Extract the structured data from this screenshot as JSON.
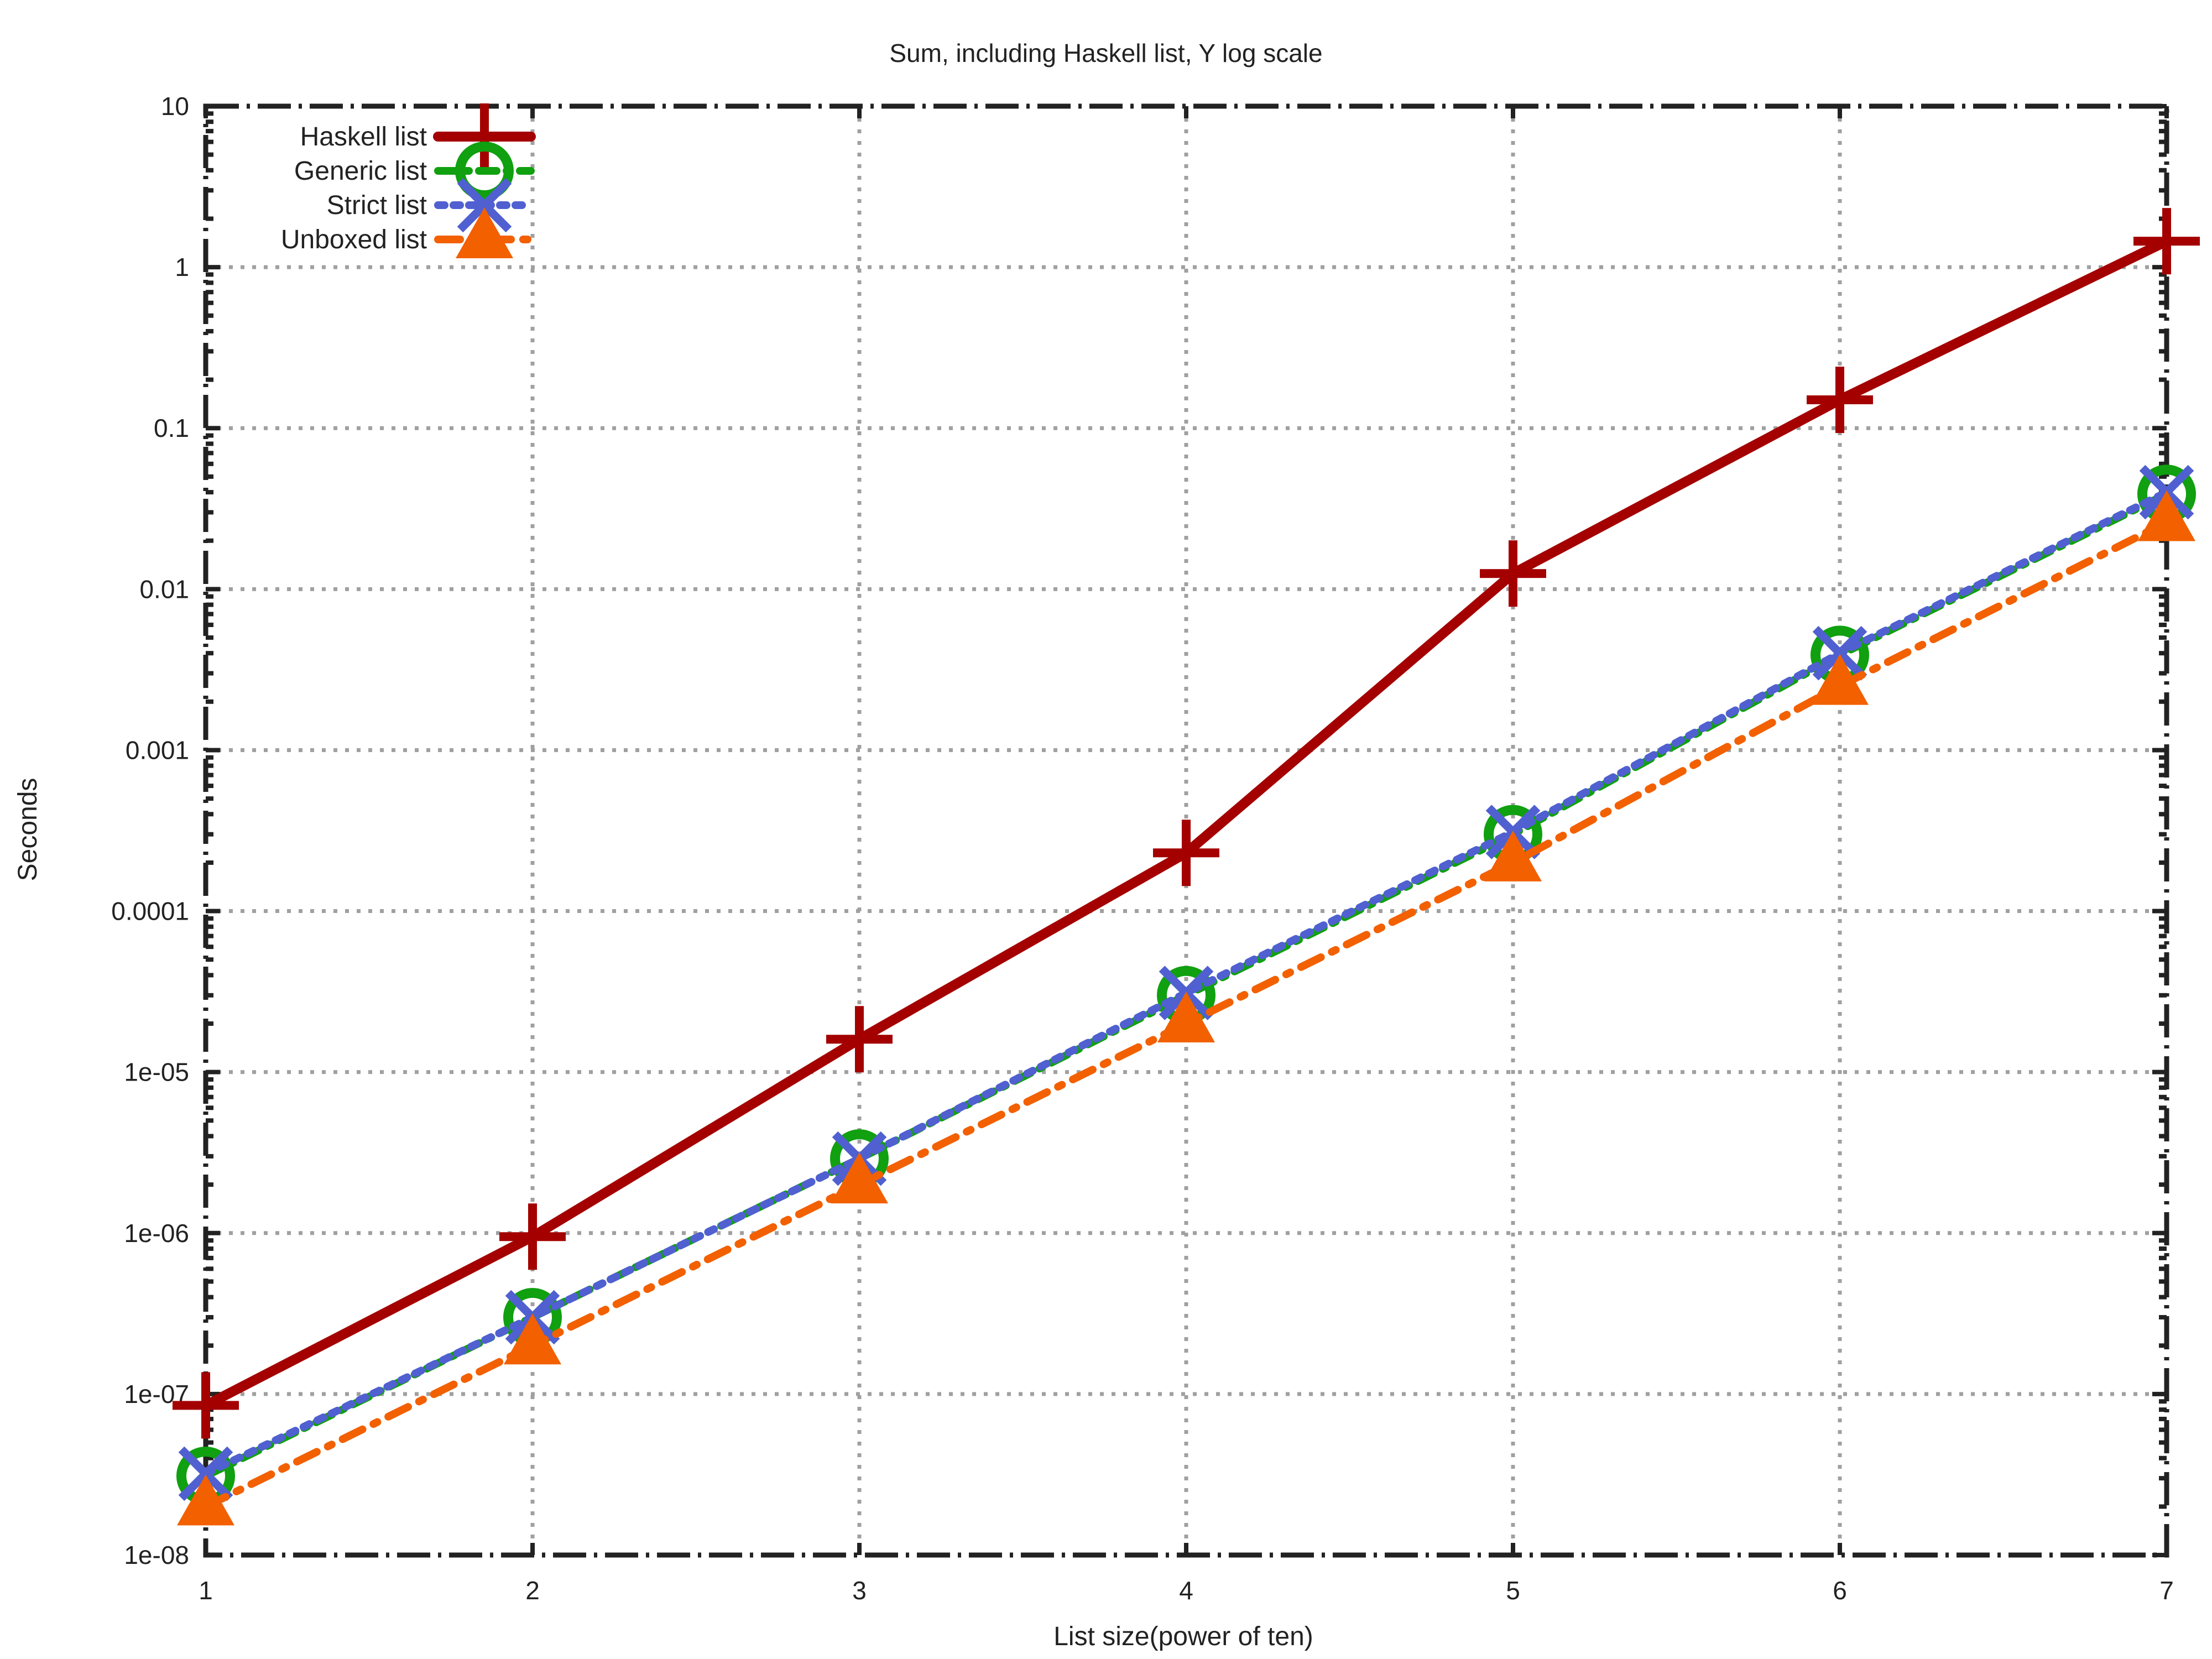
{
  "chart_data": {
    "type": "line",
    "title": "Sum, including Haskell list, Y log scale",
    "xlabel": "List size(power of ten)",
    "ylabel": "Seconds",
    "x": [
      1,
      2,
      3,
      4,
      5,
      6,
      7
    ],
    "xlim": [
      1,
      7
    ],
    "ylim": [
      1e-08,
      10
    ],
    "yscale": "log",
    "x_tick_labels": [
      "1",
      "2",
      "3",
      "4",
      "5",
      "6",
      "7"
    ],
    "y_ticks": [
      1e-08,
      1e-07,
      1e-06,
      1e-05,
      0.0001,
      0.001,
      0.01,
      0.1,
      1,
      10
    ],
    "y_tick_labels": [
      "1e-08",
      "1e-07",
      "1e-06",
      "1e-05",
      "0.0001",
      "0.001",
      "0.01",
      "0.1",
      "1",
      "10"
    ],
    "grid": true,
    "legend_position": "top-left",
    "series": [
      {
        "name": "Haskell list",
        "values": [
          8.5e-08,
          9.5e-07,
          1.6e-05,
          0.00023,
          0.0125,
          0.15,
          1.45
        ],
        "color": "#a40000",
        "marker": "plus",
        "dash": "solid"
      },
      {
        "name": "Generic list",
        "values": [
          3.1e-08,
          3e-07,
          2.9e-06,
          3e-05,
          0.0003,
          0.0039,
          0.039
        ],
        "color": "#10a010",
        "marker": "circle",
        "dash": "dashdot"
      },
      {
        "name": "Strict list",
        "values": [
          3.2e-08,
          3e-07,
          2.9e-06,
          3.1e-05,
          0.00031,
          0.004,
          0.04
        ],
        "color": "#5060d0",
        "marker": "x",
        "dash": "dotted"
      },
      {
        "name": "Unboxed list",
        "values": [
          2e-08,
          2e-07,
          2e-06,
          2e-05,
          0.0002,
          0.0025,
          0.026
        ],
        "color": "#f26000",
        "marker": "triangle",
        "dash": "dashed"
      }
    ]
  }
}
